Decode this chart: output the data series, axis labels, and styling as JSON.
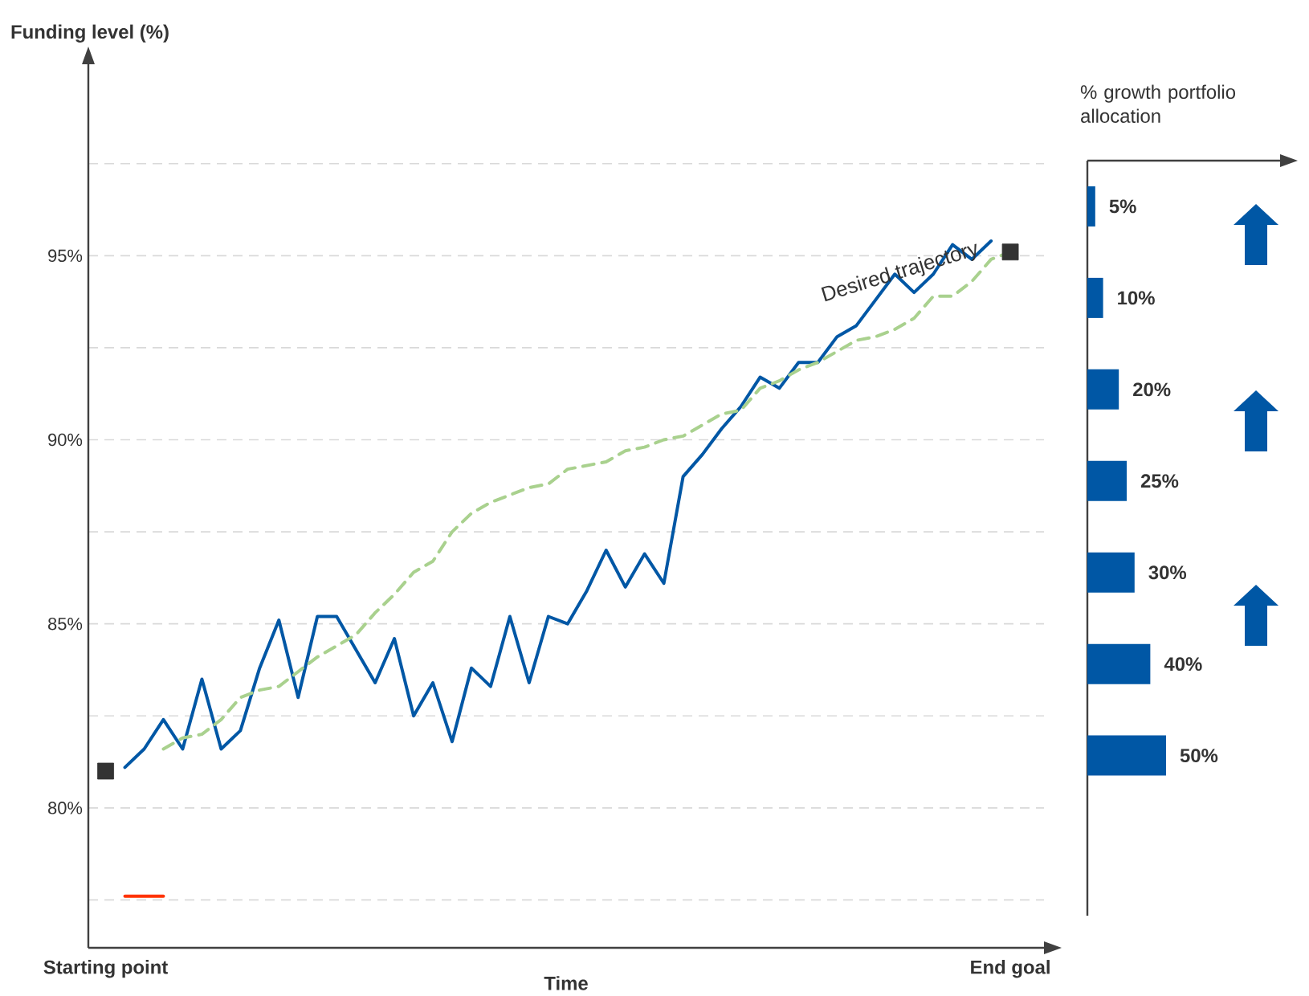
{
  "chart_data": [
    {
      "type": "line",
      "xlabel": "Time",
      "ylabel": "Funding level (%)",
      "categories": [
        "Starting point",
        null,
        null,
        null,
        null,
        null,
        null,
        null,
        null,
        null,
        null,
        null,
        null,
        null,
        null,
        null,
        null,
        null,
        null,
        null,
        null,
        null,
        null,
        null,
        null,
        null,
        null,
        null,
        null,
        null,
        null,
        null,
        null,
        null,
        null,
        null,
        null,
        null,
        null,
        null,
        null,
        null,
        null,
        null,
        null,
        null,
        null,
        "End goal"
      ],
      "ylim": [
        76.2,
        100.2
      ],
      "yticks": [
        {
          "value": 77.5,
          "label": null
        },
        {
          "value": 80,
          "label": "80%"
        },
        {
          "value": 82.5,
          "label": null
        },
        {
          "value": 85,
          "label": "85%"
        },
        {
          "value": 87.5,
          "label": null
        },
        {
          "value": 90,
          "label": "90%"
        },
        {
          "value": 92.5,
          "label": null
        },
        {
          "value": 95,
          "label": "95%"
        },
        {
          "value": 97.5,
          "label": null
        }
      ],
      "grid": "y",
      "series": [
        {
          "color": "#0057a5",
          "line_style": "solid",
          "marker": "none",
          "values": [
            null,
            81.1,
            81.6,
            82.4,
            81.6,
            83.5,
            81.6,
            82.1,
            83.8,
            85.1,
            83.0,
            85.2,
            85.2,
            84.3,
            83.4,
            84.6,
            82.5,
            83.4,
            81.8,
            83.8,
            83.3,
            85.2,
            83.4,
            85.2,
            85.0,
            85.9,
            87.0,
            86.0,
            86.9,
            86.1,
            89.0,
            89.6,
            90.3,
            90.9,
            91.7,
            91.4,
            92.1,
            92.1,
            92.8,
            93.1,
            93.8,
            94.5,
            94.0,
            94.5,
            95.3,
            94.9,
            95.4,
            null
          ]
        },
        {
          "name": "Desired trajectory",
          "color": "#a9d18e",
          "line_style": "dashed",
          "marker": "none",
          "values": [
            null,
            null,
            null,
            81.6,
            81.9,
            82.0,
            82.4,
            83.0,
            83.2,
            83.3,
            83.7,
            84.1,
            84.4,
            84.7,
            85.3,
            85.8,
            86.4,
            86.7,
            87.5,
            88.0,
            88.3,
            88.5,
            88.7,
            88.8,
            89.2,
            89.3,
            89.4,
            89.7,
            89.8,
            90.0,
            90.1,
            90.4,
            90.7,
            90.8,
            91.4,
            91.6,
            91.9,
            92.1,
            92.4,
            92.7,
            92.8,
            93.0,
            93.3,
            93.9,
            93.9,
            94.3,
            94.9,
            95.1
          ]
        },
        {
          "type": "scatter",
          "color": "#333333",
          "marker": "square",
          "values": [
            81.0,
            null,
            null,
            null,
            null,
            null,
            null,
            null,
            null,
            null,
            null,
            null,
            null,
            null,
            null,
            null,
            null,
            null,
            null,
            null,
            null,
            null,
            null,
            null,
            null,
            null,
            null,
            null,
            null,
            null,
            null,
            null,
            null,
            null,
            null,
            null,
            null,
            null,
            null,
            null,
            null,
            null,
            null,
            null,
            null,
            null,
            null,
            95.1
          ]
        },
        {
          "color": "#ff3300",
          "line_style": "solid",
          "marker": "none",
          "values": [
            null,
            77.6,
            77.6,
            77.6,
            null,
            null,
            null,
            null,
            null,
            null,
            null,
            null,
            null,
            null,
            null,
            null,
            null,
            null,
            null,
            null,
            null,
            null,
            null,
            null,
            null,
            null,
            null,
            null,
            null,
            null,
            null,
            null,
            null,
            null,
            null,
            null,
            null,
            null,
            null,
            null,
            null,
            null,
            null,
            null,
            null,
            null,
            null,
            null
          ]
        }
      ]
    },
    {
      "type": "bar",
      "orientation": "horizontal",
      "title": "% growth portfolio allocation",
      "categories": [
        null,
        null,
        null,
        null,
        null,
        null,
        null
      ],
      "color": "#0057a5",
      "values": [
        5,
        10,
        20,
        25,
        30,
        40,
        50
      ],
      "value_labels": [
        "5%",
        "10%",
        "20%",
        "25%",
        "30%",
        "40%",
        "50%"
      ]
    }
  ]
}
